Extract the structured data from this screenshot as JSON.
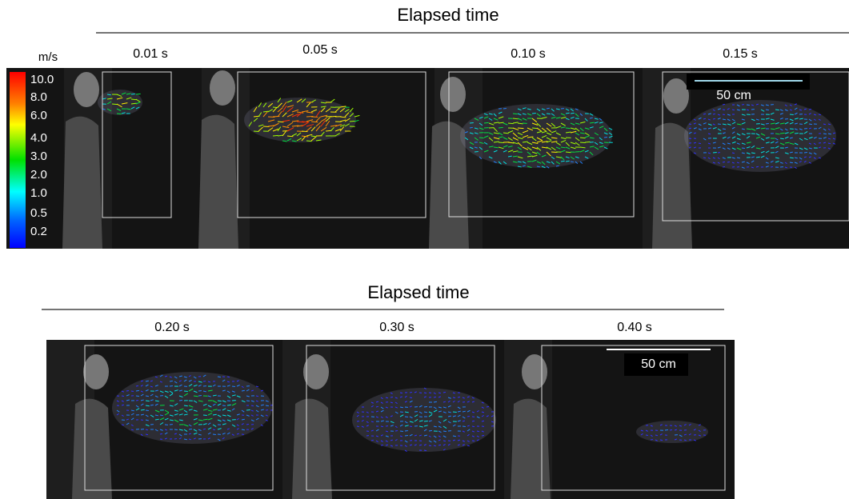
{
  "top": {
    "title": "Elapsed time",
    "times": [
      "0.01 s",
      "0.05 s",
      "0.10 s",
      "0.15 s"
    ],
    "scale_bar": "50 cm"
  },
  "colorbar": {
    "unit": "m/s",
    "labels": [
      "10.0",
      "8.0",
      "6.0",
      "4.0",
      "3.0",
      "2.0",
      "1.0",
      "0.5",
      "0.2"
    ]
  },
  "bottom": {
    "title": "Elapsed time",
    "times": [
      "0.20 s",
      "0.30 s",
      "0.40 s"
    ],
    "scale_bar": "50 cm"
  }
}
